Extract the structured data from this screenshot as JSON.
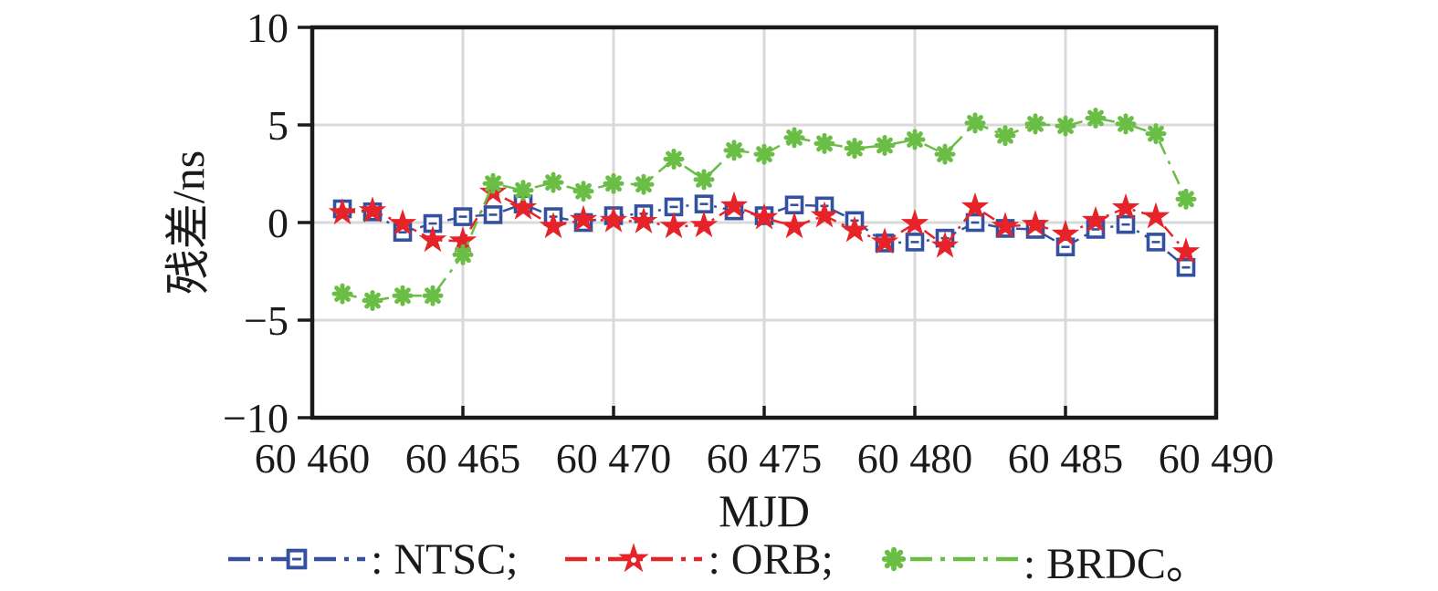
{
  "figure": {
    "background": "#ffffff",
    "axis_color": "#1a1a1a",
    "grid_color": "#d9d9d9"
  },
  "chart_data": {
    "type": "line",
    "title": "",
    "xlabel": "MJD",
    "ylabel": "残差/ns",
    "xlim": [
      60460,
      60490
    ],
    "ylim": [
      -10,
      10
    ],
    "grid": true,
    "legend_position": "below",
    "xticks": [
      60460,
      60465,
      60470,
      60475,
      60480,
      60485,
      60490
    ],
    "xtick_labels": [
      "60 460",
      "60 465",
      "60 470",
      "60 475",
      "60 480",
      "60 485",
      "60 490"
    ],
    "yticks": [
      10,
      5,
      0,
      -5,
      -10
    ],
    "ytick_labels": [
      "10",
      "5",
      "0",
      "−5",
      "−10"
    ],
    "x": [
      60461,
      60462,
      60463,
      60464,
      60465,
      60466,
      60467,
      60468,
      60469,
      60470,
      60471,
      60472,
      60473,
      60474,
      60475,
      60476,
      60477,
      60478,
      60479,
      60480,
      60481,
      60482,
      60483,
      60484,
      60485,
      60486,
      60487,
      60488,
      60489
    ],
    "series": [
      {
        "name": "NTSC",
        "color": "#33519f",
        "marker": "square",
        "line_style": "dash-dot",
        "values": [
          0.7,
          0.55,
          -0.5,
          -0.05,
          0.3,
          0.4,
          0.95,
          0.3,
          0.0,
          0.35,
          0.45,
          0.8,
          0.95,
          0.6,
          0.35,
          0.9,
          0.85,
          0.1,
          -1.05,
          -1.0,
          -0.8,
          0.0,
          -0.3,
          -0.35,
          -1.25,
          -0.35,
          -0.1,
          -1.0,
          -2.3
        ]
      },
      {
        "name": "ORB",
        "color": "#e62329",
        "marker": "star",
        "line_style": "dash-dot",
        "values": [
          0.5,
          0.6,
          -0.05,
          -0.9,
          -0.95,
          1.55,
          0.75,
          -0.2,
          0.15,
          0.1,
          0.05,
          -0.2,
          -0.15,
          0.85,
          0.25,
          -0.2,
          0.35,
          -0.4,
          -1.0,
          -0.05,
          -1.2,
          0.8,
          -0.2,
          -0.1,
          -0.6,
          0.1,
          0.75,
          0.3,
          -1.5
        ]
      },
      {
        "name": "BRDC",
        "color": "#6abd45",
        "marker": "asterisk",
        "line_style": "dash-dot",
        "values": [
          -3.65,
          -4.0,
          -3.75,
          -3.75,
          -1.65,
          2.0,
          1.65,
          2.05,
          1.6,
          2.0,
          1.95,
          3.25,
          2.2,
          3.7,
          3.5,
          4.35,
          4.05,
          3.8,
          3.95,
          4.25,
          3.5,
          5.1,
          4.45,
          5.05,
          4.95,
          5.35,
          5.05,
          4.55,
          1.2
        ]
      }
    ],
    "legend": {
      "items": [
        {
          "label": ": NTSC;",
          "series": "NTSC"
        },
        {
          "label": ": ORB;",
          "series": "ORB"
        },
        {
          "label": ": BRDC。",
          "series": "BRDC"
        }
      ]
    }
  }
}
